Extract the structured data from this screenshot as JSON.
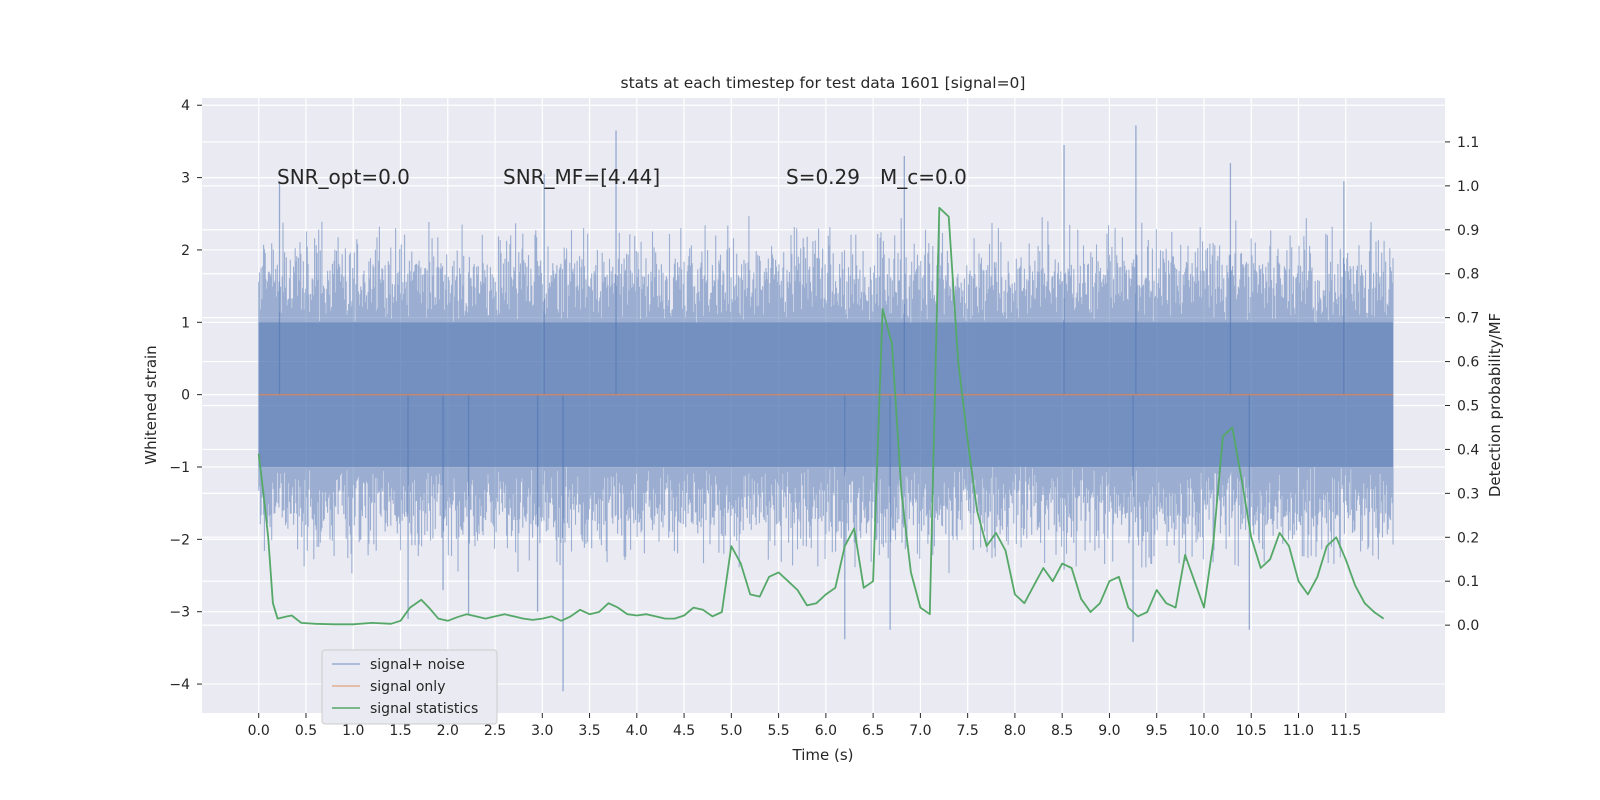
{
  "chart_data": {
    "type": "line",
    "title": "stats at each timestep for test data 1601 [signal=0]",
    "xlabel": "Time (s)",
    "ylabel": "Whitened strain",
    "ylabel_right": "Detection probability/MF",
    "xlim": [
      -0.6,
      12.55
    ],
    "ylim": [
      -4.4,
      4.1
    ],
    "ylim_right": [
      -0.2,
      1.2
    ],
    "x_ticks": [
      0.0,
      0.5,
      1.0,
      1.5,
      2.0,
      2.5,
      3.0,
      3.5,
      4.0,
      4.5,
      5.0,
      5.5,
      6.0,
      6.5,
      7.0,
      7.5,
      8.0,
      8.5,
      9.0,
      9.5,
      10.0,
      10.5,
      11.0,
      11.5
    ],
    "x_tick_labels": [
      "0.0",
      "0.5",
      "1.0",
      "1.5",
      "2.0",
      "2.5",
      "3.0",
      "3.5",
      "4.0",
      "4.5",
      "5.0",
      "5.5",
      "6.0",
      "6.5",
      "7.0",
      "7.5",
      "8.0",
      "8.5",
      "9.0",
      "9.5",
      "10.0",
      "10.5",
      "11.0",
      "11.5"
    ],
    "y_ticks": [
      -4,
      -3,
      -2,
      -1,
      0,
      1,
      2,
      3,
      4
    ],
    "y_tick_labels": [
      "−4",
      "−3",
      "−2",
      "−1",
      "0",
      "1",
      "2",
      "3",
      "4"
    ],
    "y_right_ticks": [
      0.0,
      0.1,
      0.2,
      0.3,
      0.4,
      0.5,
      0.6,
      0.7,
      0.8,
      0.9,
      1.0,
      1.1
    ],
    "y_right_tick_labels": [
      "0.0",
      "0.1",
      "0.2",
      "0.3",
      "0.4",
      "0.5",
      "0.6",
      "0.7",
      "0.8",
      "0.9",
      "1.0",
      "1.1"
    ],
    "annotations": [
      {
        "text": "SNR_opt=0.0",
        "x": 0.2,
        "y": 2.95
      },
      {
        "text": "SNR_MF=[4.44]",
        "x": 2.6,
        "y": 2.95
      },
      {
        "text": "S=0.29",
        "x": 5.6,
        "y": 2.95
      },
      {
        "text": "M_c=0.0",
        "x": 6.6,
        "y": 2.95
      }
    ],
    "legend": {
      "location": "lower-left",
      "entries": [
        "signal+ noise",
        "signal only",
        "signal statistics"
      ]
    },
    "series": [
      {
        "name": "signal+ noise",
        "color": "#4c72b0",
        "kind": "noise",
        "x_range": [
          0.0,
          12.0
        ],
        "typical_envelope": [
          -1.8,
          1.8
        ],
        "peaks": [
          {
            "x": 3.22,
            "y": -4.1
          },
          {
            "x": 3.78,
            "y": 3.65
          },
          {
            "x": 9.28,
            "y": 3.72
          },
          {
            "x": 9.25,
            "y": -3.42
          },
          {
            "x": 8.52,
            "y": 3.45
          },
          {
            "x": 6.2,
            "y": -3.38
          },
          {
            "x": 10.48,
            "y": -3.25
          },
          {
            "x": 6.68,
            "y": -3.25
          },
          {
            "x": 6.83,
            "y": 3.3
          },
          {
            "x": 1.58,
            "y": -3.1
          },
          {
            "x": 2.22,
            "y": -3.05
          },
          {
            "x": 2.95,
            "y": -3.0
          },
          {
            "x": 10.28,
            "y": 3.2
          },
          {
            "x": 0.22,
            "y": 2.95
          },
          {
            "x": 11.48,
            "y": 2.95
          },
          {
            "x": 3.02,
            "y": 3.05
          },
          {
            "x": 1.95,
            "y": -2.7
          }
        ]
      },
      {
        "name": "signal only",
        "color": "#dd8452",
        "x": [
          0.0,
          12.0
        ],
        "y": [
          0.0,
          0.0
        ]
      },
      {
        "name": "signal statistics",
        "color": "#55a868",
        "axis": "right",
        "x": [
          0.0,
          0.05,
          0.1,
          0.15,
          0.2,
          0.3,
          0.35,
          0.45,
          0.6,
          0.8,
          1.0,
          1.2,
          1.4,
          1.5,
          1.6,
          1.72,
          1.8,
          1.9,
          2.0,
          2.1,
          2.2,
          2.3,
          2.4,
          2.5,
          2.6,
          2.7,
          2.8,
          2.9,
          3.0,
          3.1,
          3.2,
          3.3,
          3.4,
          3.5,
          3.6,
          3.7,
          3.8,
          3.9,
          4.0,
          4.1,
          4.2,
          4.3,
          4.4,
          4.5,
          4.6,
          4.7,
          4.8,
          4.9,
          5.0,
          5.1,
          5.2,
          5.3,
          5.4,
          5.5,
          5.6,
          5.7,
          5.8,
          5.9,
          6.0,
          6.1,
          6.2,
          6.3,
          6.4,
          6.5,
          6.6,
          6.7,
          6.8,
          6.9,
          7.0,
          7.1,
          7.2,
          7.3,
          7.4,
          7.5,
          7.6,
          7.7,
          7.8,
          7.9,
          8.0,
          8.1,
          8.2,
          8.3,
          8.4,
          8.5,
          8.6,
          8.7,
          8.8,
          8.9,
          9.0,
          9.1,
          9.2,
          9.3,
          9.4,
          9.5,
          9.6,
          9.7,
          9.8,
          9.9,
          10.0,
          10.1,
          10.2,
          10.3,
          10.4,
          10.5,
          10.6,
          10.7,
          10.8,
          10.9,
          11.0,
          11.1,
          11.2,
          11.3,
          11.4,
          11.5,
          11.6,
          11.7,
          11.8,
          11.9
        ],
        "y": [
          0.39,
          0.3,
          0.2,
          0.05,
          0.015,
          0.02,
          0.022,
          0.005,
          0.003,
          0.002,
          0.002,
          0.005,
          0.003,
          0.01,
          0.04,
          0.058,
          0.04,
          0.015,
          0.01,
          0.018,
          0.025,
          0.02,
          0.015,
          0.02,
          0.025,
          0.02,
          0.015,
          0.012,
          0.015,
          0.02,
          0.01,
          0.02,
          0.035,
          0.025,
          0.03,
          0.05,
          0.04,
          0.025,
          0.022,
          0.025,
          0.02,
          0.015,
          0.015,
          0.022,
          0.04,
          0.035,
          0.02,
          0.03,
          0.18,
          0.14,
          0.07,
          0.065,
          0.11,
          0.12,
          0.1,
          0.08,
          0.045,
          0.05,
          0.07,
          0.085,
          0.18,
          0.22,
          0.085,
          0.1,
          0.72,
          0.64,
          0.3,
          0.12,
          0.04,
          0.025,
          0.95,
          0.93,
          0.6,
          0.42,
          0.26,
          0.18,
          0.21,
          0.17,
          0.07,
          0.05,
          0.09,
          0.13,
          0.1,
          0.14,
          0.13,
          0.06,
          0.03,
          0.05,
          0.1,
          0.11,
          0.04,
          0.02,
          0.03,
          0.08,
          0.05,
          0.04,
          0.16,
          0.1,
          0.04,
          0.19,
          0.43,
          0.45,
          0.33,
          0.2,
          0.13,
          0.15,
          0.21,
          0.18,
          0.1,
          0.07,
          0.11,
          0.18,
          0.2,
          0.15,
          0.09,
          0.05,
          0.03,
          0.015
        ]
      }
    ]
  }
}
